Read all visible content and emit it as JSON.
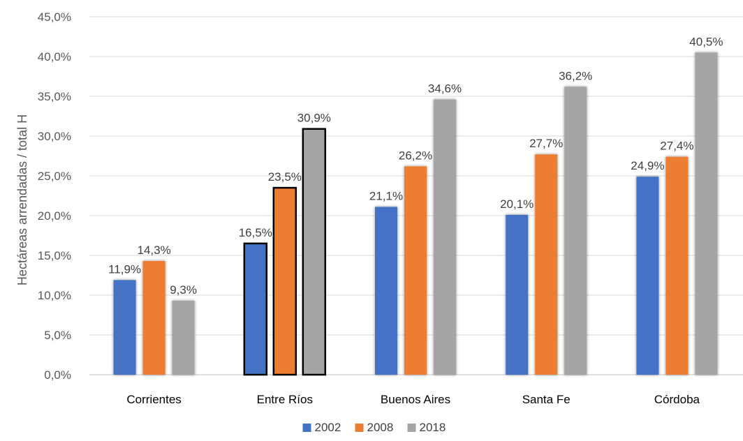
{
  "chart_data": {
    "type": "bar",
    "title": "",
    "xlabel": "",
    "ylabel": "Hectáreas arrendadas / total H",
    "ylim": [
      0,
      45
    ],
    "ytick_step": 5,
    "yticks": [
      "0,0%",
      "5,0%",
      "10,0%",
      "15,0%",
      "20,0%",
      "25,0%",
      "30,0%",
      "35,0%",
      "40,0%",
      "45,0%"
    ],
    "grid": true,
    "legend_position": "bottom",
    "categories": [
      "Corrientes",
      "Entre Ríos",
      "Buenos Aires",
      "Santa Fe",
      "Córdoba"
    ],
    "highlighted_category": "Entre Ríos",
    "series": [
      {
        "name": "2002",
        "color": "#4472C4",
        "values": [
          11.9,
          16.5,
          21.1,
          20.1,
          24.9
        ],
        "labels": [
          "11,9%",
          "16,5%",
          "21,1%",
          "20,1%",
          "24,9%"
        ]
      },
      {
        "name": "2008",
        "color": "#ED7D31",
        "values": [
          14.3,
          23.5,
          26.2,
          27.7,
          27.4
        ],
        "labels": [
          "14,3%",
          "23,5%",
          "26,2%",
          "27,7%",
          "27,4%"
        ]
      },
      {
        "name": "2018",
        "color": "#A5A5A5",
        "values": [
          9.3,
          30.9,
          34.6,
          36.2,
          40.5
        ],
        "labels": [
          "9,3%",
          "30,9%",
          "34,6%",
          "36,2%",
          "40,5%"
        ]
      }
    ]
  }
}
